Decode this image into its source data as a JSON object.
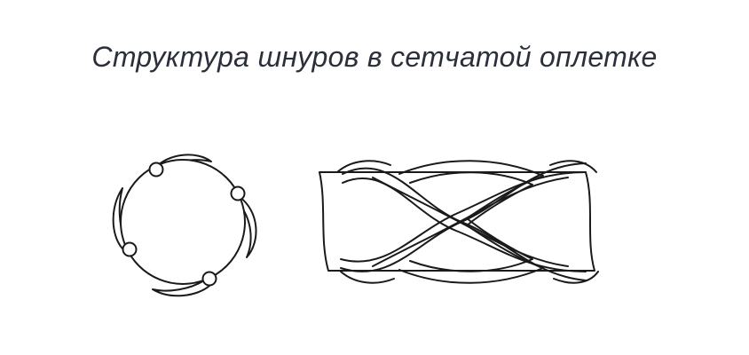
{
  "diagram": {
    "title": "Структура шнуров в сетчатой оплетке",
    "colors": {
      "ink": "#1a1a1a",
      "title": "#2a2f3a",
      "background": "#ffffff"
    }
  }
}
